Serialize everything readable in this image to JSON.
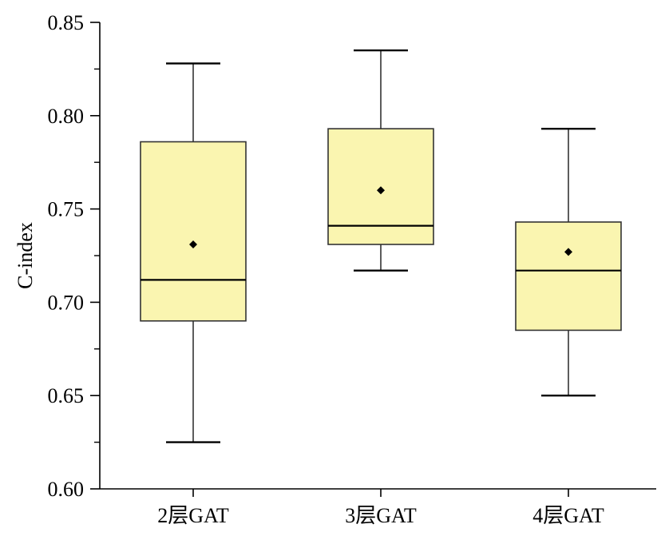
{
  "chart_data": {
    "type": "box",
    "title": "",
    "xlabel": "",
    "ylabel": "C-index",
    "ylim": [
      0.6,
      0.85
    ],
    "y_ticks": [
      "0.60",
      "0.65",
      "0.70",
      "0.75",
      "0.80",
      "0.85"
    ],
    "y_tick_values": [
      0.6,
      0.65,
      0.7,
      0.75,
      0.8,
      0.85
    ],
    "grid": false,
    "box_fill": "#FAF5B0",
    "categories": [
      "2层GAT",
      "3层GAT",
      "4层GAT"
    ],
    "boxes": [
      {
        "label": "2层GAT",
        "whisker_low": 0.625,
        "q1": 0.69,
        "median": 0.712,
        "mean": 0.731,
        "q3": 0.786,
        "whisker_high": 0.828
      },
      {
        "label": "3层GAT",
        "whisker_low": 0.717,
        "q1": 0.731,
        "median": 0.741,
        "mean": 0.76,
        "q3": 0.793,
        "whisker_high": 0.835
      },
      {
        "label": "4层GAT",
        "whisker_low": 0.65,
        "q1": 0.685,
        "median": 0.717,
        "mean": 0.727,
        "q3": 0.743,
        "whisker_high": 0.793
      }
    ]
  }
}
